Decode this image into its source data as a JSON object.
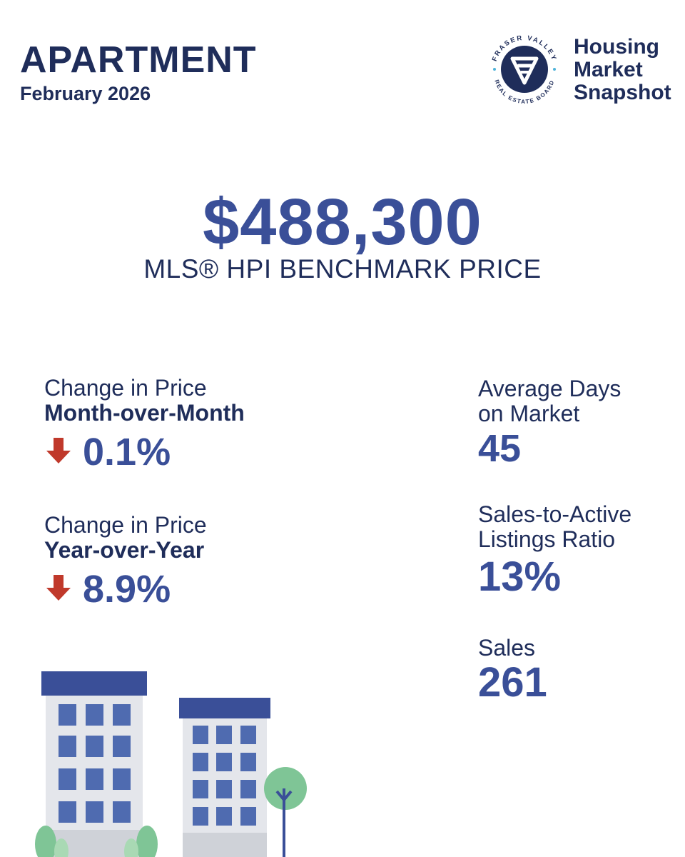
{
  "header": {
    "title": "APARTMENT",
    "period": "February 2026"
  },
  "brand": {
    "logo_ring_text_top": "FRASER VALLEY",
    "logo_ring_text_bottom": "REAL ESTATE BOARD",
    "line1": "Housing",
    "line2": "Market",
    "line3": "Snapshot"
  },
  "benchmark": {
    "price": "$488,300",
    "label": "MLS® HPI BENCHMARK PRICE"
  },
  "mom": {
    "label1": "Change in Price",
    "label2": "Month-over-Month",
    "value": "0.1%",
    "direction_icon": "down-arrow-icon"
  },
  "yoy": {
    "label1": "Change in Price",
    "label2": "Year-over-Year",
    "value": "8.9%",
    "direction_icon": "down-arrow-icon"
  },
  "dom": {
    "label1": "Average Days",
    "label2": "on Market",
    "value": "45"
  },
  "sal": {
    "label1": "Sales-to-Active",
    "label2": "Listings Ratio",
    "value": "13%"
  },
  "sales": {
    "label": "Sales",
    "value": "261"
  },
  "colors": {
    "navy": "#1f2d5a",
    "accent_blue": "#3a4f98",
    "down_red": "#c0392b",
    "tree_green": "#7fc596"
  }
}
